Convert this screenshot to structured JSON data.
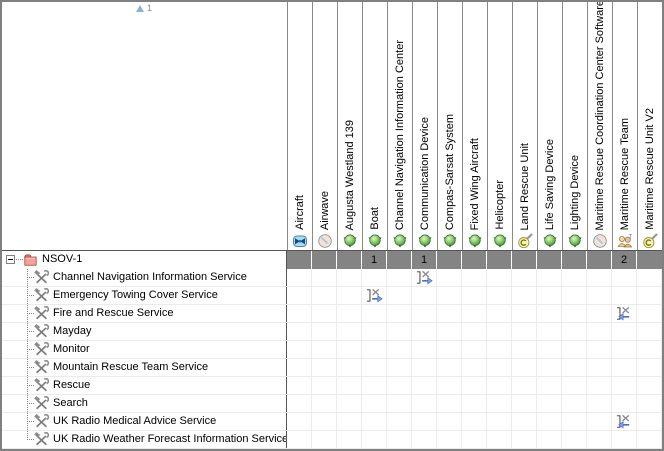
{
  "sort_indicator": {
    "number": "1",
    "icon": "sort-ascending-icon"
  },
  "root_row": {
    "label": "NSOV-1",
    "icon": "package-icon"
  },
  "columns": [
    {
      "label": "Aircraft",
      "icon": "aircraft-icon"
    },
    {
      "label": "Airwave",
      "icon": "clock-face-icon"
    },
    {
      "label": "Augusta Westland 139",
      "icon": "resource-orb-icon"
    },
    {
      "label": "Boat",
      "icon": "resource-orb-icon",
      "count": "1"
    },
    {
      "label": "Channel Navigation Information Center",
      "icon": "resource-orb-icon"
    },
    {
      "label": "Communication Device",
      "icon": "resource-orb-icon",
      "count": "1"
    },
    {
      "label": "Compas-Sarsat System",
      "icon": "resource-orb-icon"
    },
    {
      "label": "Fixed Wing Aircraft",
      "icon": "resource-orb-icon"
    },
    {
      "label": "Helicopter",
      "icon": "resource-orb-icon"
    },
    {
      "label": "Land Rescue Unit",
      "icon": "copyright-unit-icon"
    },
    {
      "label": "Life Saving Device",
      "icon": "resource-orb-icon"
    },
    {
      "label": "Lighting Device",
      "icon": "resource-orb-icon"
    },
    {
      "label": "Maritime Rescue Coordination Center Software",
      "icon": "clock-face-icon"
    },
    {
      "label": "Maritime Rescue Team",
      "icon": "team-icon",
      "count": "2"
    },
    {
      "label": "Maritime Rescue Unit V2",
      "icon": "copyright-unit-icon"
    }
  ],
  "rows": [
    {
      "label": "Channel Navigation Information Service",
      "icon": "service-tools-icon",
      "relations": [
        {
          "column": "Communication Device",
          "col_index": 5,
          "direction": "right"
        }
      ]
    },
    {
      "label": "Emergency Towing Cover Service",
      "icon": "service-tools-icon",
      "relations": [
        {
          "column": "Boat",
          "col_index": 3,
          "direction": "right"
        }
      ]
    },
    {
      "label": "Fire and Rescue Service",
      "icon": "service-tools-icon",
      "relations": [
        {
          "column": "Maritime Rescue Team",
          "col_index": 13,
          "direction": "left"
        }
      ]
    },
    {
      "label": "Mayday",
      "icon": "service-tools-icon",
      "relations": []
    },
    {
      "label": "Monitor",
      "icon": "service-tools-icon",
      "relations": []
    },
    {
      "label": "Mountain Rescue Team Service",
      "icon": "service-tools-icon",
      "relations": []
    },
    {
      "label": "Rescue",
      "icon": "service-tools-icon",
      "relations": []
    },
    {
      "label": "Search",
      "icon": "service-tools-icon",
      "relations": []
    },
    {
      "label": "UK Radio Medical Advice Service",
      "icon": "service-tools-icon",
      "relations": [
        {
          "column": "Maritime Rescue Team",
          "col_index": 13,
          "direction": "left"
        }
      ]
    },
    {
      "label": "UK Radio Weather Forecast Information Service",
      "icon": "service-tools-icon",
      "relations": []
    }
  ],
  "colors": {
    "root_cell_gray": "#848484",
    "grid_line": "#ececec",
    "column_separator": "#8a8a8a",
    "dark_divider": "#555555",
    "relation_arrow_blue": "#4a6fc8",
    "orb_green": "#5aab44",
    "package_red": "#f4a29a"
  }
}
